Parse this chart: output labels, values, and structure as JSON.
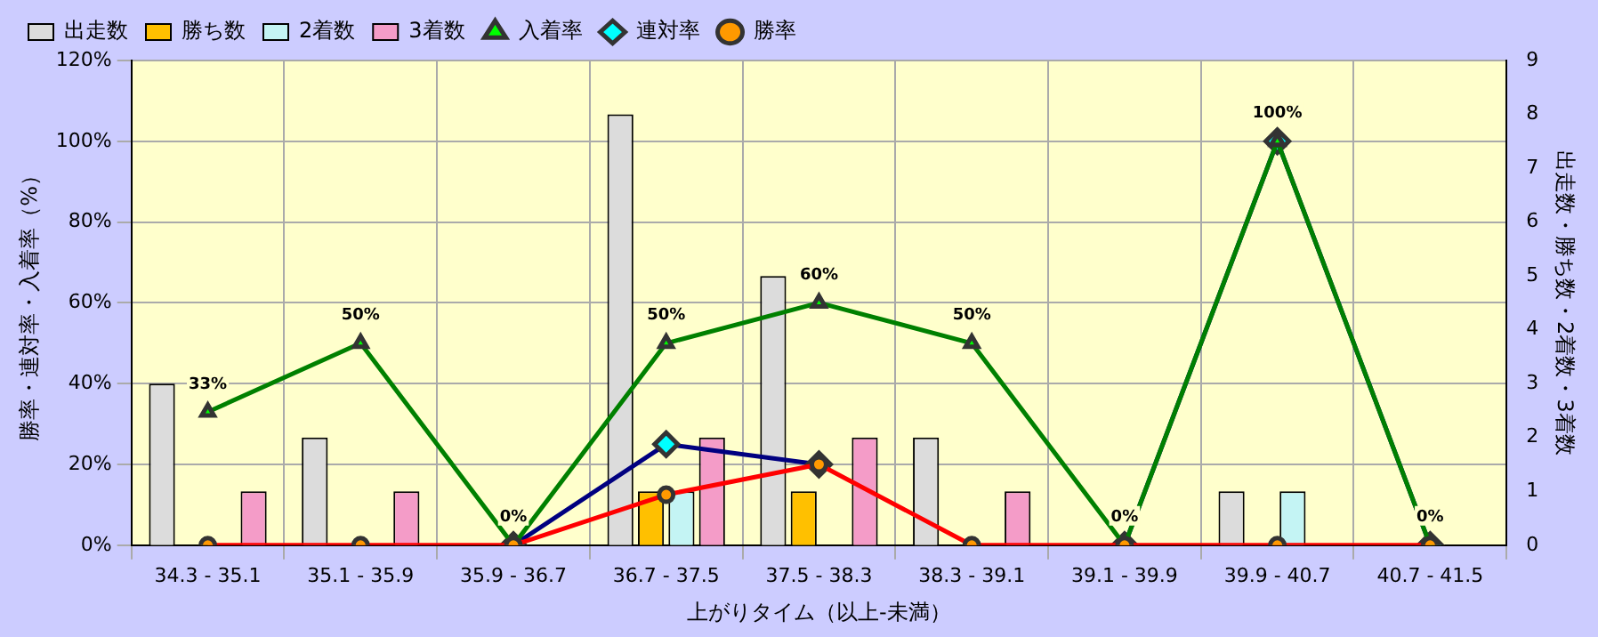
{
  "chart_data": {
    "type": "bar",
    "categories": [
      "34.3 - 35.1",
      "35.1 - 35.9",
      "35.9 - 36.7",
      "36.7 - 37.5",
      "37.5 - 38.3",
      "38.3 - 39.1",
      "39.1 - 39.9",
      "39.9 - 40.7",
      "40.7 - 41.5"
    ],
    "xlabel": "上がりタイム（以上-未満）",
    "ylabel": "勝率・連対率・入着率（%）",
    "y2label": "出走数・勝ち数・2着数・3着数",
    "ylim": [
      0,
      120
    ],
    "yticks": [
      {
        "value": 0,
        "label": "0%"
      },
      {
        "value": 20,
        "label": "20%"
      },
      {
        "value": 40,
        "label": "40%"
      },
      {
        "value": 60,
        "label": "60%"
      },
      {
        "value": 80,
        "label": "80%"
      },
      {
        "value": 100,
        "label": "100%"
      },
      {
        "value": 120,
        "label": "120%"
      }
    ],
    "y2lim": [
      0,
      9
    ],
    "y2ticks": [
      0,
      1,
      2,
      3,
      4,
      5,
      6,
      7,
      8,
      9
    ],
    "grid": true,
    "legend": "top",
    "series": [
      {
        "name": "出走数",
        "type": "bar",
        "axis": "y2",
        "color": "#dcdcdc",
        "values": [
          3,
          2,
          0,
          8,
          5,
          2,
          0,
          1,
          0
        ]
      },
      {
        "name": "勝ち数",
        "type": "bar",
        "axis": "y2",
        "color": "#ffc000",
        "values": [
          0,
          0,
          0,
          1,
          1,
          0,
          0,
          0,
          0
        ]
      },
      {
        "name": "2着数",
        "type": "bar",
        "axis": "y2",
        "color": "#c4f4f4",
        "values": [
          0,
          0,
          0,
          1,
          0,
          0,
          0,
          1,
          0
        ]
      },
      {
        "name": "3着数",
        "type": "bar",
        "axis": "y2",
        "color": "#f49cc8",
        "values": [
          1,
          1,
          0,
          2,
          2,
          1,
          0,
          0,
          0
        ]
      },
      {
        "name": "入着率",
        "type": "line",
        "color": "#008000",
        "marker": "triangle",
        "values": [
          33,
          50,
          0,
          50,
          60,
          50,
          0,
          100,
          0
        ],
        "value_labels": [
          "33%",
          "50%",
          "0%",
          "50%",
          "60%",
          "50%",
          "0%",
          "100%",
          "0%"
        ]
      },
      {
        "name": "連対率",
        "type": "line",
        "color": "#000080",
        "marker": "diamond",
        "values": [
          null,
          null,
          0,
          25,
          20,
          null,
          0,
          100,
          0
        ]
      },
      {
        "name": "勝率",
        "type": "line",
        "color": "#ff0000",
        "marker": "circle",
        "values": [
          0,
          0,
          0,
          12.5,
          20,
          0,
          0,
          0,
          0
        ]
      }
    ]
  }
}
